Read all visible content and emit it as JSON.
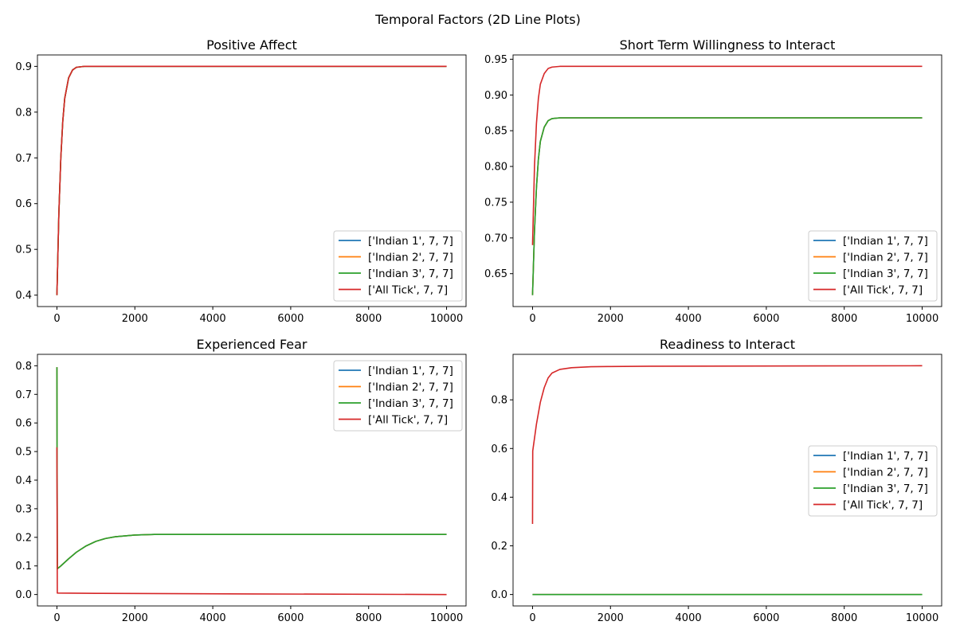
{
  "figure": {
    "suptitle": "Temporal Factors (2D Line Plots)"
  },
  "series_colors": [
    "#1f77b4",
    "#ff7f0e",
    "#2ca02c",
    "#d62728"
  ],
  "chart_data": [
    {
      "type": "line",
      "title": "Positive Affect",
      "xlabel": "",
      "ylabel": "",
      "xlim": [
        -500,
        10500
      ],
      "ylim": [
        0.375,
        0.925
      ],
      "xticks": [
        0,
        2000,
        4000,
        6000,
        8000,
        10000
      ],
      "xtick_labels": [
        "0",
        "2000",
        "4000",
        "6000",
        "8000",
        "10000"
      ],
      "yticks": [
        0.4,
        0.5,
        0.6,
        0.7,
        0.8,
        0.9
      ],
      "ytick_labels": [
        "0.4",
        "0.5",
        "0.6",
        "0.7",
        "0.8",
        "0.9"
      ],
      "legend_loc": "lower-right",
      "series": [
        {
          "name": "['Indian 1', 7, 7]",
          "x": [
            0,
            50,
            100,
            150,
            200,
            300,
            400,
            500,
            700,
            1000,
            10000
          ],
          "y": [
            0.4,
            0.58,
            0.7,
            0.78,
            0.83,
            0.875,
            0.892,
            0.898,
            0.9,
            0.9,
            0.9
          ]
        },
        {
          "name": "['Indian 2', 7, 7]",
          "x": [
            0,
            50,
            100,
            150,
            200,
            300,
            400,
            500,
            700,
            1000,
            10000
          ],
          "y": [
            0.4,
            0.58,
            0.7,
            0.78,
            0.83,
            0.875,
            0.892,
            0.898,
            0.9,
            0.9,
            0.9
          ]
        },
        {
          "name": "['Indian 3', 7, 7]",
          "x": [
            0,
            50,
            100,
            150,
            200,
            300,
            400,
            500,
            700,
            1000,
            10000
          ],
          "y": [
            0.4,
            0.58,
            0.7,
            0.78,
            0.83,
            0.875,
            0.892,
            0.898,
            0.9,
            0.9,
            0.9
          ]
        },
        {
          "name": "['All Tick', 7, 7]",
          "x": [
            0,
            50,
            100,
            150,
            200,
            300,
            400,
            500,
            700,
            1000,
            10000
          ],
          "y": [
            0.4,
            0.58,
            0.7,
            0.78,
            0.83,
            0.875,
            0.892,
            0.898,
            0.9,
            0.9,
            0.9
          ]
        }
      ]
    },
    {
      "type": "line",
      "title": "Short Term Willingness to Interact",
      "xlabel": "",
      "ylabel": "",
      "xlim": [
        -500,
        10500
      ],
      "ylim": [
        0.604,
        0.956
      ],
      "xticks": [
        0,
        2000,
        4000,
        6000,
        8000,
        10000
      ],
      "xtick_labels": [
        "0",
        "2000",
        "4000",
        "6000",
        "8000",
        "10000"
      ],
      "yticks": [
        0.65,
        0.7,
        0.75,
        0.8,
        0.85,
        0.9,
        0.95
      ],
      "ytick_labels": [
        "0.65",
        "0.70",
        "0.75",
        "0.80",
        "0.85",
        "0.90",
        "0.95"
      ],
      "legend_loc": "lower-right",
      "series": [
        {
          "name": "['Indian 1', 7, 7]",
          "x": [
            0,
            50,
            100,
            150,
            200,
            300,
            400,
            500,
            700,
            1000,
            10000
          ],
          "y": [
            0.62,
            0.71,
            0.77,
            0.81,
            0.835,
            0.855,
            0.864,
            0.867,
            0.868,
            0.868,
            0.868
          ]
        },
        {
          "name": "['Indian 2', 7, 7]",
          "x": [
            0,
            50,
            100,
            150,
            200,
            300,
            400,
            500,
            700,
            1000,
            10000
          ],
          "y": [
            0.62,
            0.71,
            0.77,
            0.81,
            0.835,
            0.855,
            0.864,
            0.867,
            0.868,
            0.868,
            0.868
          ]
        },
        {
          "name": "['Indian 3', 7, 7]",
          "x": [
            0,
            50,
            100,
            150,
            200,
            300,
            400,
            500,
            700,
            1000,
            10000
          ],
          "y": [
            0.62,
            0.71,
            0.77,
            0.81,
            0.835,
            0.855,
            0.864,
            0.867,
            0.868,
            0.868,
            0.868
          ]
        },
        {
          "name": "['All Tick', 7, 7]",
          "x": [
            0,
            50,
            100,
            150,
            200,
            300,
            400,
            500,
            700,
            1000,
            10000
          ],
          "y": [
            0.69,
            0.8,
            0.86,
            0.895,
            0.915,
            0.93,
            0.937,
            0.939,
            0.94,
            0.94,
            0.94
          ]
        }
      ]
    },
    {
      "type": "line",
      "title": "Experienced Fear",
      "xlabel": "",
      "ylabel": "",
      "xlim": [
        -500,
        10500
      ],
      "ylim": [
        -0.04,
        0.84
      ],
      "xticks": [
        0,
        2000,
        4000,
        6000,
        8000,
        10000
      ],
      "xtick_labels": [
        "0",
        "2000",
        "4000",
        "6000",
        "8000",
        "10000"
      ],
      "yticks": [
        0.0,
        0.1,
        0.2,
        0.3,
        0.4,
        0.5,
        0.6,
        0.7,
        0.8
      ],
      "ytick_labels": [
        "0.0",
        "0.1",
        "0.2",
        "0.3",
        "0.4",
        "0.5",
        "0.6",
        "0.7",
        "0.8"
      ],
      "legend_loc": "upper-right",
      "series": [
        {
          "name": "['Indian 1', 7, 7]",
          "x": [
            0,
            10,
            100,
            300,
            500,
            750,
            1000,
            1250,
            1500,
            2000,
            2500,
            3000,
            10000
          ],
          "y": [
            0.795,
            0.09,
            0.1,
            0.125,
            0.148,
            0.17,
            0.186,
            0.196,
            0.202,
            0.208,
            0.21,
            0.21,
            0.21
          ]
        },
        {
          "name": "['Indian 2', 7, 7]",
          "x": [
            0,
            10,
            100,
            300,
            500,
            750,
            1000,
            1250,
            1500,
            2000,
            2500,
            3000,
            10000
          ],
          "y": [
            0.795,
            0.09,
            0.1,
            0.125,
            0.148,
            0.17,
            0.186,
            0.196,
            0.202,
            0.208,
            0.21,
            0.21,
            0.21
          ]
        },
        {
          "name": "['Indian 3', 7, 7]",
          "x": [
            0,
            10,
            100,
            300,
            500,
            750,
            1000,
            1250,
            1500,
            2000,
            2500,
            3000,
            10000
          ],
          "y": [
            0.795,
            0.09,
            0.1,
            0.125,
            0.148,
            0.17,
            0.186,
            0.196,
            0.202,
            0.208,
            0.21,
            0.21,
            0.21
          ]
        },
        {
          "name": "['All Tick', 7, 7]",
          "x": [
            0,
            10,
            1000,
            5000,
            10000
          ],
          "y": [
            0.515,
            0.005,
            0.004,
            0.002,
            0.0
          ]
        }
      ]
    },
    {
      "type": "line",
      "title": "Readiness to Interact",
      "xlabel": "",
      "ylabel": "",
      "xlim": [
        -500,
        10500
      ],
      "ylim": [
        -0.047,
        0.987
      ],
      "xticks": [
        0,
        2000,
        4000,
        6000,
        8000,
        10000
      ],
      "xtick_labels": [
        "0",
        "2000",
        "4000",
        "6000",
        "8000",
        "10000"
      ],
      "yticks": [
        0.0,
        0.2,
        0.4,
        0.6,
        0.8
      ],
      "ytick_labels": [
        "0.0",
        "0.2",
        "0.4",
        "0.6",
        "0.8"
      ],
      "legend_loc": "center-right",
      "series": [
        {
          "name": "['Indian 1', 7, 7]",
          "x": [
            0,
            10000
          ],
          "y": [
            0.0,
            0.0
          ]
        },
        {
          "name": "['Indian 2', 7, 7]",
          "x": [
            0,
            10000
          ],
          "y": [
            0.0,
            0.0
          ]
        },
        {
          "name": "['Indian 3', 7, 7]",
          "x": [
            0,
            10000
          ],
          "y": [
            0.0,
            0.0
          ]
        },
        {
          "name": "['All Tick', 7, 7]",
          "x": [
            0,
            5,
            100,
            200,
            300,
            400,
            500,
            700,
            1000,
            1500,
            2000,
            3000,
            10000
          ],
          "y": [
            0.29,
            0.59,
            0.7,
            0.79,
            0.85,
            0.89,
            0.91,
            0.925,
            0.932,
            0.936,
            0.937,
            0.938,
            0.94
          ]
        }
      ]
    }
  ]
}
